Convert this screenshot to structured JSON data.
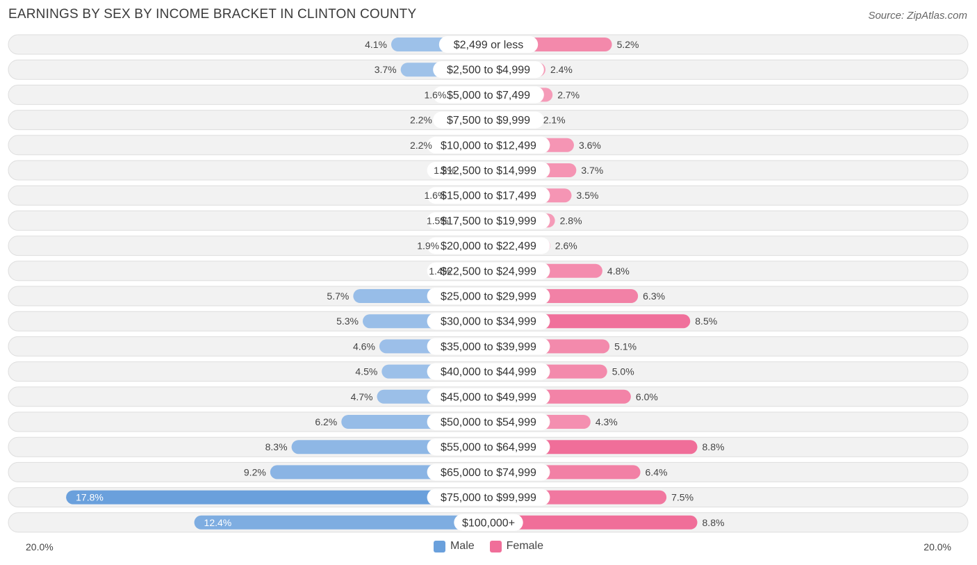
{
  "title": "EARNINGS BY SEX BY INCOME BRACKET IN CLINTON COUNTY",
  "source": "Source: ZipAtlas.com",
  "colors": {
    "male_light": "#a9c8ec",
    "male_dark": "#6aa0dc",
    "female_light": "#f7a8c1",
    "female_dark": "#f06e99",
    "row_bg": "#f2f2f2",
    "row_border": "#dedede"
  },
  "legend": {
    "male": "Male",
    "female": "Female"
  },
  "axis": {
    "left_label": "20.0%",
    "right_label": "20.0%"
  },
  "chart_data": {
    "type": "bar",
    "orientation": "horizontal-diverging",
    "title": "EARNINGS BY SEX BY INCOME BRACKET IN CLINTON COUNTY",
    "xlim": [
      -20,
      20
    ],
    "categories": [
      "$2,499 or less",
      "$2,500 to $4,999",
      "$5,000 to $7,499",
      "$7,500 to $9,999",
      "$10,000 to $12,499",
      "$12,500 to $14,999",
      "$15,000 to $17,499",
      "$17,500 to $19,999",
      "$20,000 to $22,499",
      "$22,500 to $24,999",
      "$25,000 to $29,999",
      "$30,000 to $34,999",
      "$35,000 to $39,999",
      "$40,000 to $44,999",
      "$45,000 to $49,999",
      "$50,000 to $54,999",
      "$55,000 to $64,999",
      "$65,000 to $74,999",
      "$75,000 to $99,999",
      "$100,000+"
    ],
    "series": [
      {
        "name": "Male",
        "values": [
          4.1,
          3.7,
          1.6,
          2.2,
          2.2,
          1.2,
          1.6,
          1.5,
          1.9,
          1.4,
          5.7,
          5.3,
          4.6,
          4.5,
          4.7,
          6.2,
          8.3,
          9.2,
          17.8,
          12.4
        ],
        "labels": [
          "4.1%",
          "3.7%",
          "1.6%",
          "2.2%",
          "2.2%",
          "1.2%",
          "1.6%",
          "1.5%",
          "1.9%",
          "1.4%",
          "5.7%",
          "5.3%",
          "4.6%",
          "4.5%",
          "4.7%",
          "6.2%",
          "8.3%",
          "9.2%",
          "17.8%",
          "12.4%"
        ]
      },
      {
        "name": "Female",
        "values": [
          5.2,
          2.4,
          2.7,
          2.1,
          3.6,
          3.7,
          3.5,
          2.8,
          2.6,
          4.8,
          6.3,
          8.5,
          5.1,
          5.0,
          6.0,
          4.3,
          8.8,
          6.4,
          7.5,
          8.8
        ],
        "labels": [
          "5.2%",
          "2.4%",
          "2.7%",
          "2.1%",
          "3.6%",
          "3.7%",
          "3.5%",
          "2.8%",
          "2.6%",
          "4.8%",
          "6.3%",
          "8.5%",
          "5.1%",
          "5.0%",
          "6.0%",
          "4.3%",
          "8.8%",
          "6.4%",
          "7.5%",
          "8.8%"
        ]
      }
    ],
    "legend": [
      "Male",
      "Female"
    ]
  }
}
